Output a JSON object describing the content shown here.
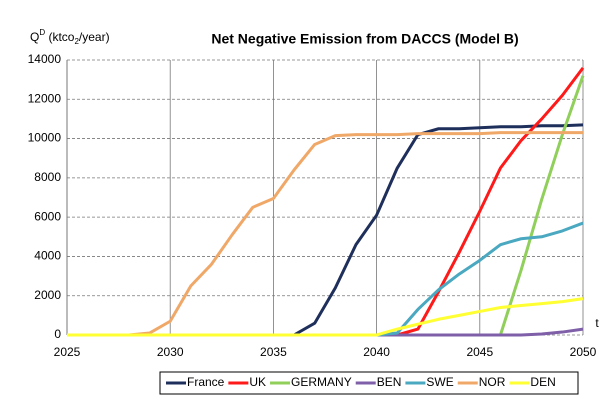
{
  "chart_data": {
    "type": "line",
    "title": "Net Negative Emission from DACCS (Model B)",
    "ylabel": {
      "base": "Q",
      "sup": "D",
      "mid": " (ktco",
      "sub": "2",
      "end": "/year)"
    },
    "xlabel": "t",
    "x": [
      2025,
      2026,
      2027,
      2028,
      2029,
      2030,
      2031,
      2032,
      2033,
      2034,
      2035,
      2036,
      2037,
      2038,
      2039,
      2040,
      2041,
      2042,
      2043,
      2044,
      2045,
      2046,
      2047,
      2048,
      2049,
      2050
    ],
    "xlim": [
      2025,
      2050
    ],
    "xticks": [
      2025,
      2030,
      2035,
      2040,
      2045,
      2050
    ],
    "ylim": [
      0,
      14000
    ],
    "yticks": [
      0,
      2000,
      4000,
      6000,
      8000,
      10000,
      12000,
      14000
    ],
    "grid": true,
    "legend": "bottom",
    "series": [
      {
        "name": "France",
        "color": "#1f2f5c",
        "values": [
          0,
          0,
          0,
          0,
          0,
          0,
          0,
          0,
          0,
          0,
          0,
          0,
          600,
          2400,
          4600,
          6100,
          8500,
          10200,
          10500,
          10500,
          10550,
          10600,
          10600,
          10650,
          10650,
          10700
        ]
      },
      {
        "name": "UK",
        "color": "#ff1a1a",
        "values": [
          0,
          0,
          0,
          0,
          0,
          0,
          0,
          0,
          0,
          0,
          0,
          0,
          0,
          0,
          0,
          0,
          0,
          300,
          2200,
          4200,
          6300,
          8500,
          9900,
          11000,
          12200,
          13600
        ]
      },
      {
        "name": "GERMANY",
        "color": "#8fcf5a",
        "values": [
          0,
          0,
          0,
          0,
          0,
          0,
          0,
          0,
          0,
          0,
          0,
          0,
          0,
          0,
          0,
          0,
          0,
          0,
          0,
          0,
          0,
          0,
          3300,
          6900,
          10200,
          13200
        ]
      },
      {
        "name": "BEN",
        "color": "#7e5fa8",
        "values": [
          0,
          0,
          0,
          0,
          0,
          0,
          0,
          0,
          0,
          0,
          0,
          0,
          0,
          0,
          0,
          0,
          0,
          0,
          0,
          0,
          0,
          0,
          0,
          50,
          150,
          300
        ]
      },
      {
        "name": "SWE",
        "color": "#4aa8c0",
        "values": [
          0,
          0,
          0,
          0,
          0,
          0,
          0,
          0,
          0,
          0,
          0,
          0,
          0,
          0,
          0,
          0,
          100,
          1300,
          2300,
          3100,
          3800,
          4600,
          4900,
          5000,
          5300,
          5700
        ]
      },
      {
        "name": "NOR",
        "color": "#f0a868",
        "values": [
          0,
          0,
          0,
          0,
          100,
          700,
          2500,
          3600,
          5100,
          6500,
          6950,
          8400,
          9700,
          10150,
          10200,
          10200,
          10200,
          10250,
          10250,
          10250,
          10250,
          10300,
          10300,
          10300,
          10300,
          10300
        ]
      },
      {
        "name": "DEN",
        "color": "#ffff33",
        "values": [
          0,
          0,
          0,
          0,
          0,
          0,
          0,
          0,
          0,
          0,
          0,
          0,
          0,
          0,
          0,
          0,
          300,
          550,
          800,
          1000,
          1200,
          1400,
          1500,
          1600,
          1700,
          1850
        ]
      }
    ]
  }
}
